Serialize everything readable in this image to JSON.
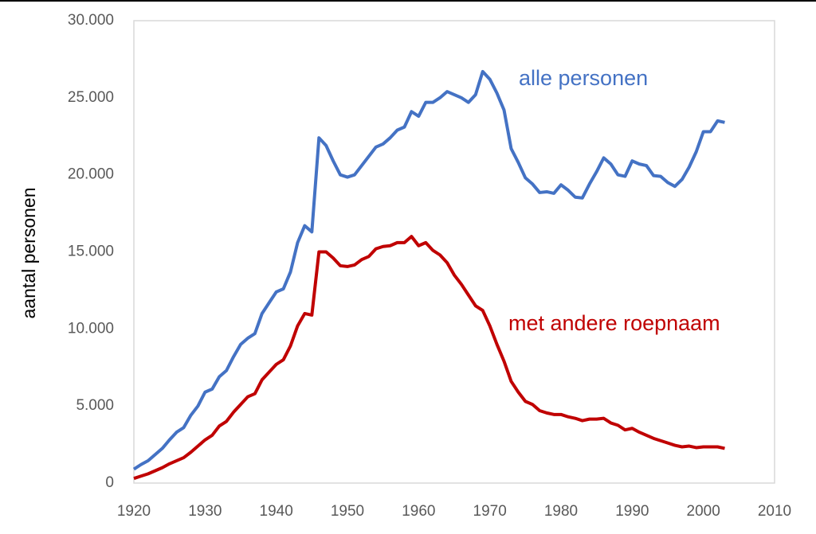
{
  "chart_data": {
    "type": "line",
    "y_label": "aantal personen",
    "x": [
      1920,
      1921,
      1922,
      1923,
      1924,
      1925,
      1926,
      1927,
      1928,
      1929,
      1930,
      1931,
      1932,
      1933,
      1934,
      1935,
      1936,
      1937,
      1938,
      1939,
      1940,
      1941,
      1942,
      1943,
      1944,
      1945,
      1946,
      1947,
      1948,
      1949,
      1950,
      1951,
      1952,
      1953,
      1954,
      1955,
      1956,
      1957,
      1958,
      1959,
      1960,
      1961,
      1962,
      1963,
      1964,
      1965,
      1966,
      1967,
      1968,
      1969,
      1970,
      1971,
      1972,
      1973,
      1974,
      1975,
      1976,
      1977,
      1978,
      1979,
      1980,
      1981,
      1982,
      1983,
      1984,
      1985,
      1986,
      1987,
      1988,
      1989,
      1990,
      1991,
      1992,
      1993,
      1994,
      1995,
      1996,
      1997,
      1998,
      1999,
      2000,
      2001,
      2002,
      2003
    ],
    "series": [
      {
        "name": "alle personen",
        "color": "#4472c4",
        "values": [
          900,
          1200,
          1450,
          1850,
          2250,
          2800,
          3300,
          3600,
          4400,
          5000,
          5900,
          6100,
          6900,
          7300,
          8200,
          9000,
          9400,
          9700,
          11000,
          11700,
          12400,
          12600,
          13700,
          15600,
          16700,
          16300,
          22400,
          21900,
          20900,
          20000,
          19850,
          20000,
          20600,
          21200,
          21800,
          22000,
          22400,
          22900,
          23100,
          24100,
          23800,
          24700,
          24700,
          25000,
          25400,
          25200,
          25000,
          24700,
          25200,
          26700,
          26200,
          25300,
          24200,
          21700,
          20800,
          19800,
          19400,
          18850,
          18900,
          18800,
          19350,
          19000,
          18550,
          18500,
          19400,
          20200,
          21100,
          20700,
          20000,
          19900,
          20900,
          20700,
          20600,
          19950,
          19900,
          19500,
          19250,
          19700,
          20500,
          21500,
          22800,
          22800,
          23500,
          23400
        ]
      },
      {
        "name": "met andere roepnaam",
        "color": "#c00000",
        "values": [
          300,
          450,
          600,
          800,
          1000,
          1250,
          1450,
          1650,
          2000,
          2400,
          2800,
          3100,
          3700,
          4000,
          4600,
          5100,
          5600,
          5800,
          6700,
          7200,
          7700,
          8000,
          8900,
          10200,
          11000,
          10900,
          15000,
          15000,
          14600,
          14100,
          14050,
          14150,
          14500,
          14700,
          15200,
          15350,
          15400,
          15600,
          15600,
          16000,
          15400,
          15600,
          15100,
          14800,
          14300,
          13500,
          12900,
          12200,
          11500,
          11200,
          10200,
          9000,
          7900,
          6600,
          5900,
          5300,
          5100,
          4700,
          4550,
          4450,
          4450,
          4300,
          4200,
          4050,
          4150,
          4150,
          4200,
          3900,
          3750,
          3450,
          3550,
          3300,
          3100,
          2900,
          2750,
          2600,
          2450,
          2350,
          2400,
          2300,
          2350,
          2350,
          2350,
          2250
        ]
      }
    ],
    "xlim": [
      1920,
      2010
    ],
    "xticks": [
      1920,
      1930,
      1940,
      1950,
      1960,
      1970,
      1980,
      1990,
      2000,
      2010
    ],
    "ylim": [
      0,
      30000
    ],
    "yticks": [
      {
        "value": 0,
        "label": "0"
      },
      {
        "value": 5000,
        "label": "5.000"
      },
      {
        "value": 10000,
        "label": "10.000"
      },
      {
        "value": 15000,
        "label": "15.000"
      },
      {
        "value": 20000,
        "label": "20.000"
      },
      {
        "value": 25000,
        "label": "25.000"
      },
      {
        "value": 30000,
        "label": "30.000"
      }
    ],
    "grid": false
  }
}
